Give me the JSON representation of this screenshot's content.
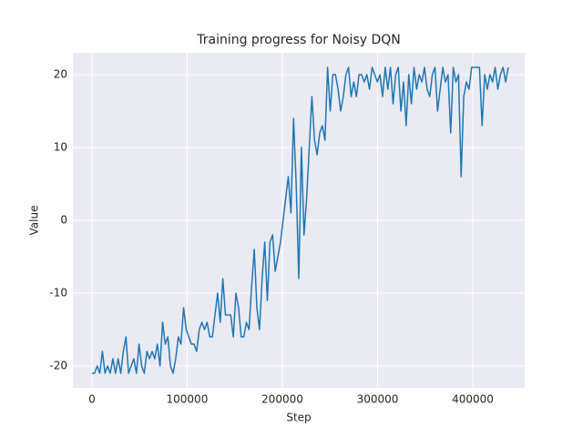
{
  "chart_data": {
    "type": "line",
    "title": "Training progress for Noisy DQN",
    "x_label": "Step",
    "y_label": "Value",
    "x": [
      0,
      2750,
      5500,
      8250,
      11000,
      13750,
      16500,
      19250,
      22000,
      24750,
      27500,
      30250,
      33000,
      35750,
      38500,
      41250,
      44000,
      46750,
      49500,
      52250,
      55000,
      57750,
      60500,
      63250,
      66000,
      68750,
      71500,
      74250,
      77000,
      79750,
      82500,
      85250,
      88000,
      90750,
      93500,
      96250,
      99000,
      101750,
      104500,
      107250,
      110000,
      112750,
      115500,
      118250,
      121000,
      123750,
      126500,
      129250,
      132000,
      134750,
      137500,
      140250,
      143000,
      145750,
      148500,
      151250,
      154000,
      156750,
      159500,
      162250,
      165000,
      167750,
      170500,
      173250,
      176000,
      178750,
      181500,
      184250,
      187000,
      189750,
      192500,
      195250,
      198000,
      200750,
      203500,
      206250,
      209000,
      211750,
      214500,
      217250,
      220000,
      222750,
      225500,
      228250,
      231000,
      233750,
      236500,
      239250,
      242000,
      244750,
      247500,
      250250,
      253000,
      255750,
      258500,
      261250,
      264000,
      266750,
      269500,
      272250,
      275000,
      277750,
      280500,
      283250,
      286000,
      288750,
      291500,
      294250,
      297000,
      299750,
      302500,
      305250,
      308000,
      310750,
      313500,
      316250,
      319000,
      321750,
      324500,
      327250,
      330000,
      332750,
      335500,
      338250,
      341000,
      343750,
      346500,
      349250,
      352000,
      354750,
      357500,
      360250,
      363000,
      365750,
      368500,
      371250,
      374000,
      376750,
      379500,
      382250,
      385000,
      387750,
      390500,
      393250,
      396000,
      398750,
      401500,
      404250,
      407000,
      409750,
      412500,
      415250,
      418000,
      420750,
      423500,
      426250,
      429000,
      431750,
      434500,
      437250
    ],
    "series": [
      {
        "name": "Value",
        "color": "#1f77b4",
        "values": [
          -21,
          -21,
          -20,
          -21,
          -18,
          -21,
          -20,
          -21,
          -19,
          -21,
          -19,
          -21,
          -18,
          -16,
          -21,
          -20,
          -19,
          -21,
          -17,
          -20,
          -21,
          -18,
          -19,
          -18,
          -19,
          -17,
          -20,
          -14,
          -17,
          -16,
          -20,
          -21,
          -19,
          -16,
          -17,
          -12,
          -15,
          -16,
          -17,
          -17,
          -18,
          -15,
          -14,
          -15,
          -14,
          -16,
          -16,
          -13,
          -10,
          -14,
          -8,
          -13,
          -13,
          -13,
          -16,
          -10,
          -12,
          -16,
          -16,
          -14,
          -15,
          -9,
          -4,
          -12,
          -15,
          -8,
          -3,
          -11,
          -3,
          -2,
          -7,
          -5,
          -3,
          0,
          3,
          6,
          1,
          14,
          5,
          -8,
          10,
          -2,
          3,
          10,
          17,
          11,
          9,
          12,
          13,
          11,
          21,
          15,
          20,
          20,
          18,
          15,
          17,
          20,
          21,
          17,
          19,
          17,
          20,
          20,
          19,
          20,
          18,
          21,
          20,
          19,
          20,
          17,
          21,
          18,
          21,
          16,
          20,
          21,
          15,
          19,
          13,
          20,
          16,
          21,
          18,
          20,
          19,
          21,
          18,
          17,
          20,
          21,
          15,
          18,
          21,
          19,
          20,
          12,
          21,
          19,
          20,
          6,
          17,
          19,
          18,
          21,
          21,
          21,
          21,
          13,
          20,
          18,
          20,
          19,
          21,
          18,
          20,
          21,
          19,
          21
        ]
      }
    ],
    "xlim": [
      -20000,
      454500
    ],
    "ylim": [
      -23,
      23
    ],
    "xticks": [
      0,
      100000,
      200000,
      300000,
      400000
    ],
    "yticks": [
      -20,
      -10,
      0,
      10,
      20
    ],
    "grid": true
  }
}
